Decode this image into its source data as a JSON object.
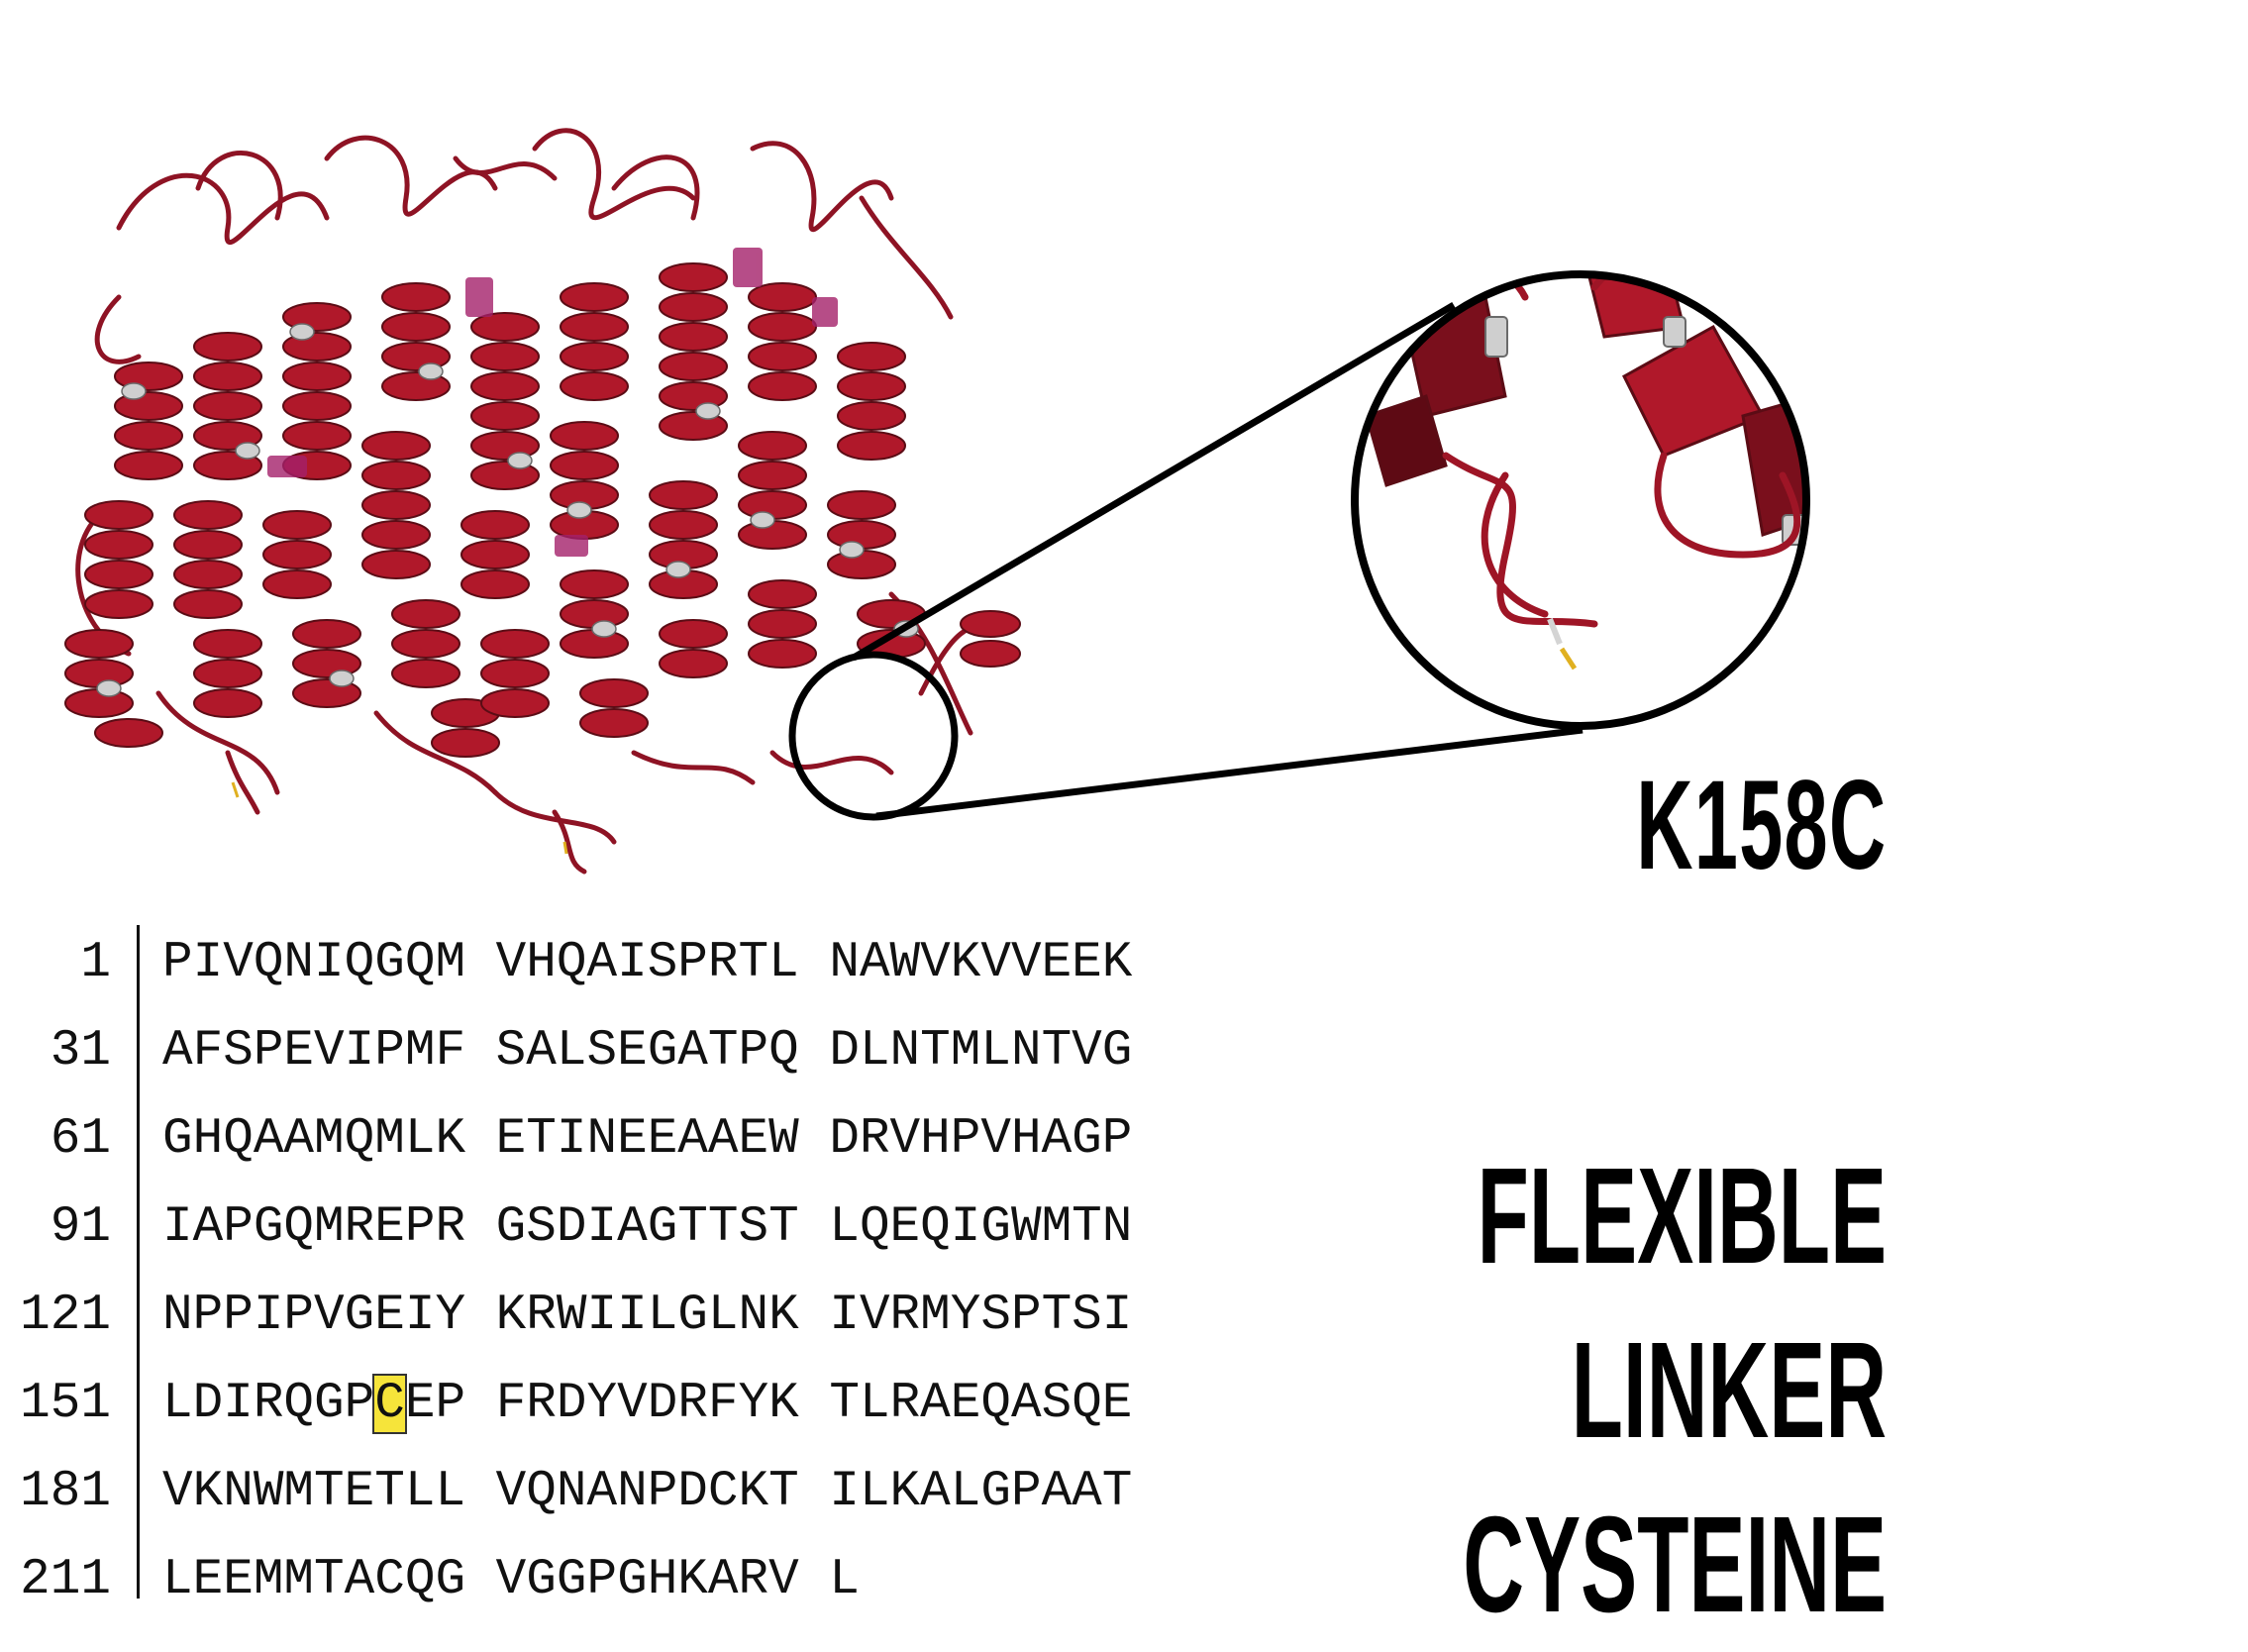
{
  "mutation": "K158C",
  "description_lines": [
    "FLEXIBLE",
    "LINKER",
    "CYSTEINE"
  ],
  "sequence_rows": [
    {
      "start": "1",
      "groups": [
        "PIVQNIQGQM",
        "VHQAISPRTL",
        "NAWVKVVEEK"
      ]
    },
    {
      "start": "31",
      "groups": [
        "AFSPEVIPMF",
        "SALSEGATPQ",
        "DLNTMLNTVG"
      ]
    },
    {
      "start": "61",
      "groups": [
        "GHQAAMQMLK",
        "ETINEEAAEW",
        "DRVHPVHAGP"
      ]
    },
    {
      "start": "91",
      "groups": [
        "IAPGQMREPR",
        "GSDIAGTTST",
        "LQEQIGWMTN"
      ]
    },
    {
      "start": "121",
      "groups": [
        "NPPIPVGEIY",
        "KRWIILGLNK",
        "IVRMYSPTSI"
      ]
    },
    {
      "start": "151",
      "groups": [
        "LDIRQGP",
        "C",
        "EP",
        "FRDYVDRFYK",
        "TLRAEQASQE"
      ]
    },
    {
      "start": "181",
      "groups": [
        "VKNWMTETLL",
        "VQNANPDCKT",
        "ILKALGPAAT"
      ]
    },
    {
      "start": "211",
      "groups": [
        "LEEMMTACQG",
        "VGGPGHKARV",
        "L"
      ]
    }
  ],
  "highlight_residue": "C",
  "colors": {
    "helix_dark": "#6b0f1a",
    "helix": "#b0182a",
    "helix_light": "#c9c9c9",
    "highlight": "#f6e43a",
    "magenta": "#a4216a"
  }
}
